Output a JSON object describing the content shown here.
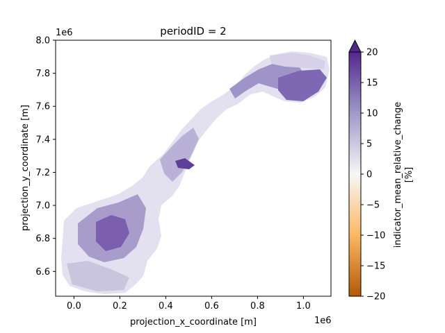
{
  "plot": {
    "title": "periodID = 2",
    "xlabel": "projection_x_coordinate [m]",
    "ylabel": "projection_y_coordinate [m]",
    "x_offset_label": "1e6",
    "y_offset_label": "1e6",
    "xlim": [
      -0.08,
      1.12
    ],
    "ylim": [
      6.45,
      8.0
    ],
    "x_ticks": [
      {
        "value": 0.0,
        "label": "0.0"
      },
      {
        "value": 0.2,
        "label": "0.2"
      },
      {
        "value": 0.4,
        "label": "0.4"
      },
      {
        "value": 0.6,
        "label": "0.6"
      },
      {
        "value": 0.8,
        "label": "0.8"
      },
      {
        "value": 1.0,
        "label": "1.0"
      }
    ],
    "y_ticks": [
      {
        "value": 6.6,
        "label": "6.6"
      },
      {
        "value": 6.8,
        "label": "6.8"
      },
      {
        "value": 7.0,
        "label": "7.0"
      },
      {
        "value": 7.2,
        "label": "7.2"
      },
      {
        "value": 7.4,
        "label": "7.4"
      },
      {
        "value": 7.6,
        "label": "7.6"
      },
      {
        "value": 7.8,
        "label": "7.8"
      },
      {
        "value": 8.0,
        "label": "8.0"
      }
    ]
  },
  "colorbar": {
    "label_line1": "indicator_mean_relative_change",
    "label_line2": "[%]",
    "range": [
      -20,
      20
    ],
    "extend": "max",
    "ticks": [
      {
        "value": 20,
        "label": "20"
      },
      {
        "value": 15,
        "label": "15"
      },
      {
        "value": 10,
        "label": "10"
      },
      {
        "value": 5,
        "label": "5"
      },
      {
        "value": 0,
        "label": "0"
      },
      {
        "value": -5,
        "label": "−5"
      },
      {
        "value": -10,
        "label": "−10"
      },
      {
        "value": -15,
        "label": "−15"
      },
      {
        "value": -20,
        "label": "−20"
      }
    ],
    "colors": {
      "high": "#54278f",
      "mid_high": "#9e9ac8",
      "zero": "#f7f7f7",
      "mid_low": "#fdb863",
      "low": "#b35806"
    }
  },
  "map": {
    "region_color_light": "#ece9f4",
    "region_color_mid": "#bcbddc",
    "region_color_dark": "#6a51a3"
  }
}
